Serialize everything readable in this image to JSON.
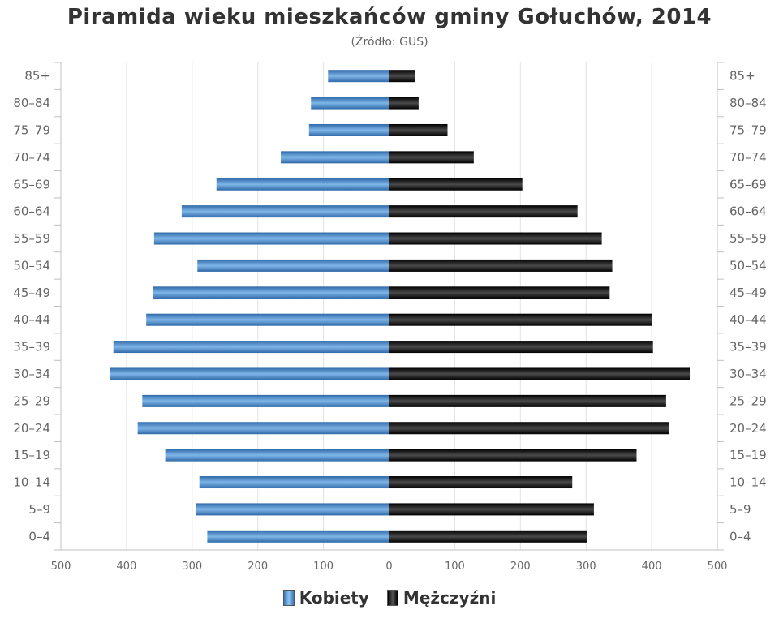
{
  "title": "Piramida wieku mieszkańców gminy Gołuchów, 2014",
  "subtitle": "(Źródło: GUS)",
  "colors": {
    "female": "#4a86c5",
    "male": "#1a1a1a",
    "grid": "#e2e2e2",
    "axis": "#c0c0c0",
    "text": "#666666"
  },
  "chart_data": {
    "type": "bar",
    "orientation": "horizontal-population-pyramid",
    "categories": [
      "0–4",
      "5–9",
      "10–14",
      "15–19",
      "20–24",
      "25–29",
      "30–34",
      "35–39",
      "40–44",
      "45–49",
      "50–54",
      "55–59",
      "60–64",
      "65–69",
      "70–74",
      "75–79",
      "80–84",
      "85+"
    ],
    "series": [
      {
        "name": "Kobiety",
        "side": "left",
        "values": [
          277,
          294,
          289,
          341,
          383,
          376,
          425,
          420,
          370,
          360,
          292,
          358,
          316,
          263,
          165,
          122,
          119,
          93
        ]
      },
      {
        "name": "Mężczyźni",
        "side": "right",
        "values": [
          302,
          312,
          279,
          377,
          426,
          422,
          458,
          402,
          401,
          336,
          340,
          324,
          287,
          203,
          129,
          89,
          45,
          40
        ]
      }
    ],
    "xticks": [
      "500",
      "400",
      "300",
      "200",
      "100",
      "0",
      "100",
      "200",
      "300",
      "400",
      "500"
    ],
    "xlim": [
      -500,
      500
    ],
    "grid": true,
    "legend": "bottom"
  }
}
